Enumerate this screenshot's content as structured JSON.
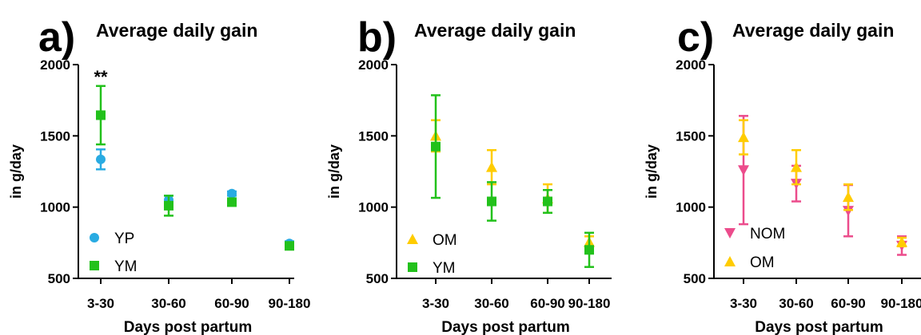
{
  "chart_data": [
    {
      "type": "scatter",
      "panel": "a)",
      "title": "Average daily gain",
      "xlabel": "Days post partum",
      "ylabel": "in g/day",
      "categories": [
        "3-30",
        "30-60",
        "60-90",
        "90-180"
      ],
      "ylim": [
        500,
        2000
      ],
      "yticks": [
        500,
        1000,
        1500,
        2000
      ],
      "legend_position": "bottom-left",
      "annotations": [
        {
          "category": "3-30",
          "text": "**"
        }
      ],
      "series": [
        {
          "name": "YP",
          "color": "#29abe2",
          "marker": "circle",
          "values": [
            1335,
            1050,
            1095,
            745
          ],
          "err": [
            70,
            30,
            15,
            15
          ]
        },
        {
          "name": "YM",
          "color": "#22c11b",
          "marker": "square",
          "values": [
            1645,
            1010,
            1035,
            728
          ],
          "err": [
            205,
            70,
            25,
            12
          ]
        }
      ]
    },
    {
      "type": "scatter",
      "panel": "b)",
      "title": "Average daily gain",
      "xlabel": "Days post partum",
      "ylabel": "in g/day",
      "categories": [
        "3-30",
        "30-60",
        "60-90",
        "90-180"
      ],
      "ylim": [
        500,
        2000
      ],
      "yticks": [
        500,
        1000,
        1500,
        2000
      ],
      "legend_position": "bottom-left",
      "series": [
        {
          "name": "OM",
          "color": "#ffcc00",
          "marker": "triangle",
          "values": [
            1500,
            1280,
            1060,
            755
          ],
          "err": [
            110,
            120,
            100,
            40
          ]
        },
        {
          "name": "YM",
          "color": "#22c11b",
          "marker": "square",
          "values": [
            1425,
            1040,
            1040,
            700
          ],
          "err": [
            360,
            135,
            80,
            120
          ]
        }
      ]
    },
    {
      "type": "scatter",
      "panel": "c)",
      "title": "Average daily gain",
      "xlabel": "Days post partum",
      "ylabel": "in g/day",
      "categories": [
        "3-30",
        "30-60",
        "60-90",
        "90-180"
      ],
      "ylim": [
        500,
        2000
      ],
      "yticks": [
        500,
        1000,
        1500,
        2000
      ],
      "legend_position": "bottom-left",
      "series": [
        {
          "name": "NOM",
          "color": "#ec4c8c",
          "marker": "triangle-down",
          "values": [
            1260,
            1165,
            975,
            730
          ],
          "err": [
            380,
            125,
            180,
            65
          ]
        },
        {
          "name": "OM",
          "color": "#ffcc00",
          "marker": "triangle",
          "values": [
            1490,
            1280,
            1070,
            755
          ],
          "err": [
            120,
            120,
            90,
            30
          ]
        }
      ]
    }
  ]
}
